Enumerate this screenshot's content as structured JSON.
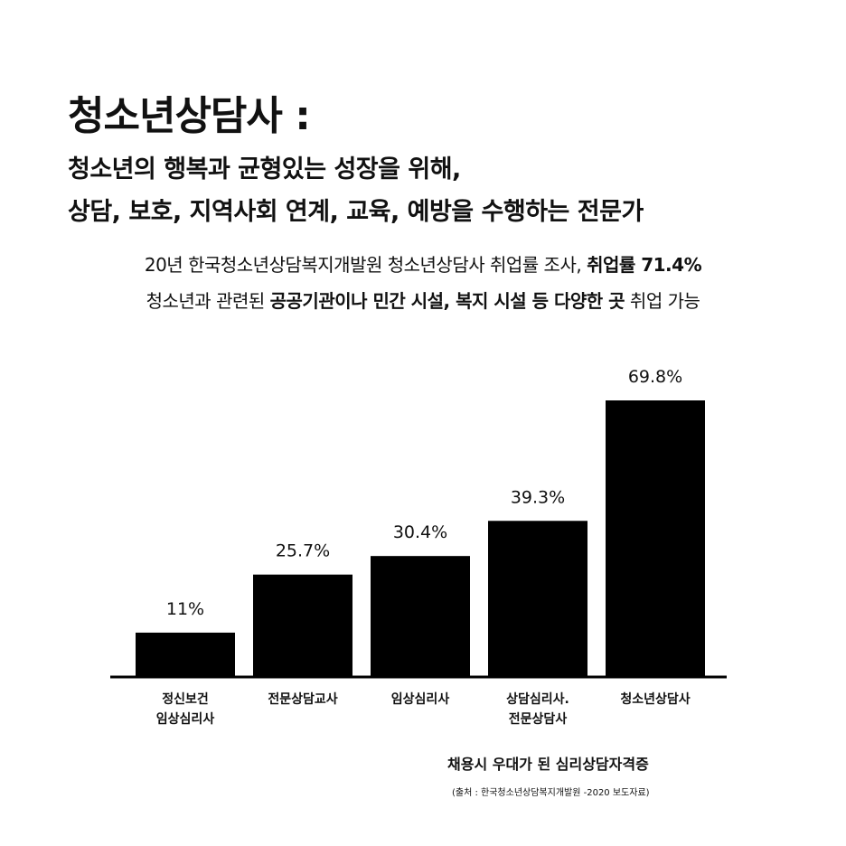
{
  "title": "청소년상담사 :",
  "subtitle_line1": "청소년의 행복과 균형있는 성장을 위해,",
  "subtitle_line2": "상담, 보호, 지역사회 연계, 교육, 예방을 수행하는 전문가",
  "note_line1": {
    "normal": "20년 한국청소년상담복지개발원 청소년상담사 취업률 조사, ",
    "bold": "취업률 71.4%"
  },
  "note_line2": {
    "part1": "청소년과 관련된 ",
    "bold1": "공공기관이나 민간 시설, 복지 시설 등 다양한 곳",
    "part2": " 취업 가능"
  },
  "chart_data": {
    "type": "bar",
    "categories": [
      "정신보건\n임상심리사",
      "전문상담교사",
      "임상심리사",
      "상담심리사.\n전문상담사",
      "청소년상담사"
    ],
    "values": [
      11,
      25.7,
      30.4,
      39.3,
      69.8
    ],
    "value_labels": [
      "11%",
      "25.7%",
      "30.4%",
      "39.3%",
      "69.8%"
    ],
    "ylim": [
      0,
      69.8
    ],
    "bar_color": "#000000",
    "grid": false,
    "title": "",
    "xlabel": "",
    "ylabel": ""
  },
  "caption": "채용시 우대가 된 심리상담자격증",
  "source": "(출처 : 한국청소년상담복지개발원 -2020 보도자료)"
}
